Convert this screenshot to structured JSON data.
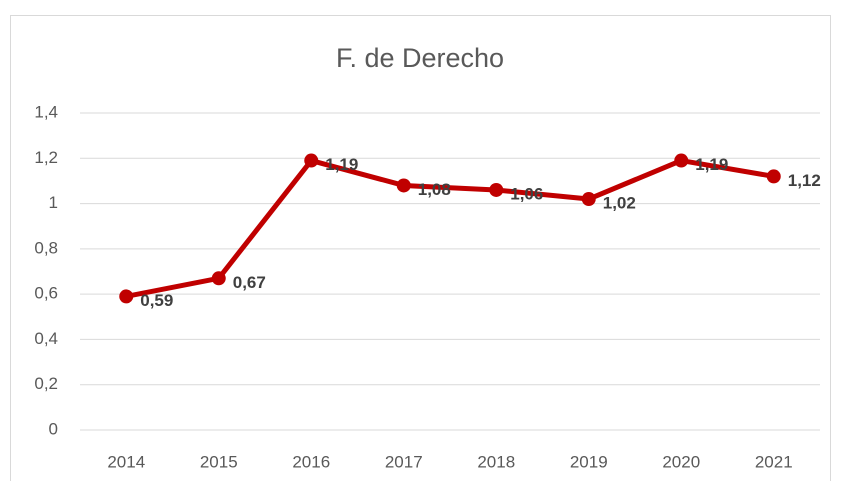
{
  "chart_data": {
    "type": "line",
    "title": "F. de Derecho",
    "categories": [
      "2014",
      "2015",
      "2016",
      "2017",
      "2018",
      "2019",
      "2020",
      "2021"
    ],
    "series": [
      {
        "name": "F. de Derecho",
        "color": "#c00000",
        "values": [
          0.59,
          0.67,
          1.19,
          1.08,
          1.06,
          1.02,
          1.19,
          1.12
        ],
        "value_labels": [
          "0,59",
          "0,67",
          "1,19",
          "1,08",
          "1,06",
          "1,02",
          "1,19",
          "1,12"
        ]
      }
    ],
    "ylim": [
      0,
      1.4
    ],
    "yticks": [
      0,
      {
        "value": 0.2,
        "label": "0,2"
      },
      {
        "value": 0.4,
        "label": "0,4"
      },
      {
        "value": 0.6,
        "label": "0,6"
      },
      {
        "value": 0.8,
        "label": "0,8"
      },
      1,
      {
        "value": 1.2,
        "label": "1,2"
      },
      {
        "value": 1.4,
        "label": "1,4"
      }
    ],
    "grid": true
  }
}
